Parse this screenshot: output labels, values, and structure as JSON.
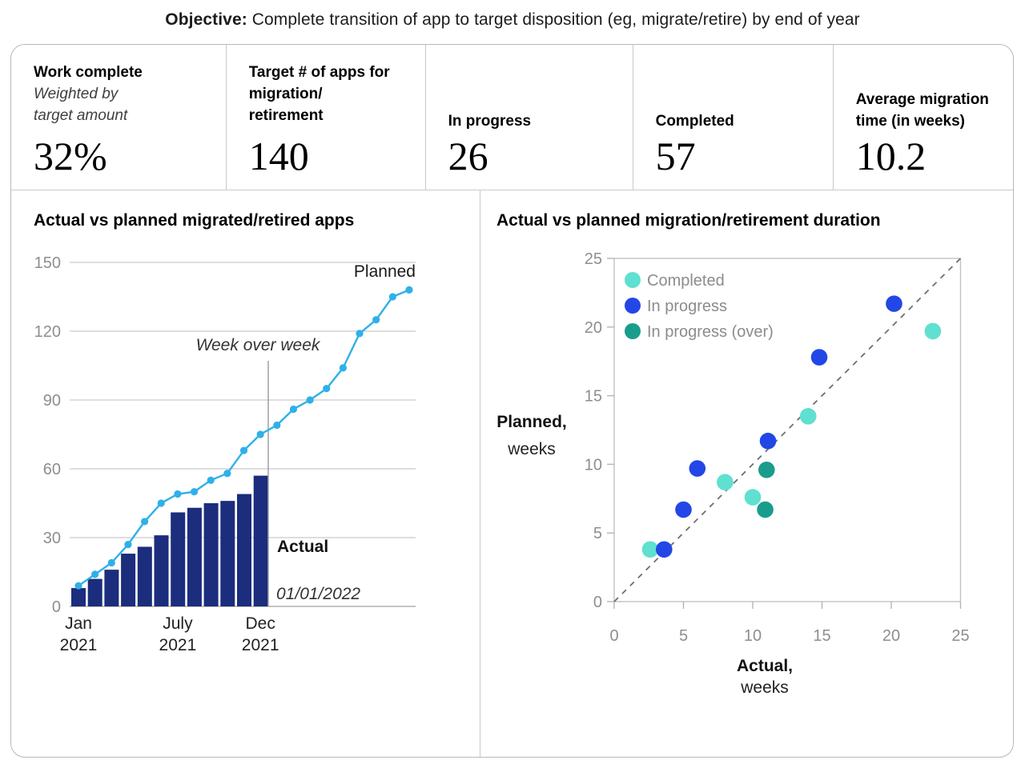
{
  "header": {
    "label": "Objective:",
    "text": " Complete transition of app to target disposition (eg, migrate/retire) by end of year"
  },
  "kpis": [
    {
      "label": "Work complete",
      "sublabel": "Weighted by\ntarget amount",
      "value": "32%"
    },
    {
      "label": "Target # of apps for\nmigration/\nretirement",
      "value": "140"
    },
    {
      "label": "In progress",
      "value": "26"
    },
    {
      "label": "Completed",
      "value": "57"
    },
    {
      "label": "Average migration\ntime (in weeks)",
      "value": "10.2"
    }
  ],
  "chart_data": [
    {
      "type": "bar+line",
      "title": "Actual vs planned migrated/retired apps",
      "ylim": [
        0,
        150
      ],
      "y_ticks": [
        0,
        30,
        60,
        90,
        120,
        150
      ],
      "grid": true,
      "bars": {
        "name": "Actual",
        "color": "#1b2d7c",
        "period": "monthly 2021",
        "values": [
          8,
          12,
          16,
          23,
          26,
          31,
          41,
          43,
          45,
          46,
          49,
          57
        ]
      },
      "line": {
        "name": "Planned",
        "color": "#2fb0e8",
        "values": [
          9,
          14,
          19,
          27,
          37,
          45,
          49,
          50,
          55,
          58,
          68,
          75,
          79,
          86,
          90,
          95,
          104,
          119,
          125,
          135,
          138
        ]
      },
      "x_tick_labels": [
        {
          "label": "Jan\n2021",
          "index": 0
        },
        {
          "label": "July\n2021",
          "index": 6
        },
        {
          "label": "Dec\n2021",
          "index": 11
        }
      ],
      "annotations": {
        "line_label": "Planned",
        "bars_label": "Actual",
        "week_over_week": "Week over week",
        "cutoff_date": "01/01/2022"
      }
    },
    {
      "type": "scatter",
      "title": "Actual vs planned migration/retirement duration",
      "xlabel_bold": "Actual,",
      "xlabel_sub": "weeks",
      "ylabel_bold": "Planned,",
      "ylabel_sub": "weeks",
      "xlim": [
        0,
        25
      ],
      "ylim": [
        0,
        25
      ],
      "x_ticks": [
        0,
        5,
        10,
        15,
        20,
        25
      ],
      "y_ticks": [
        0,
        5,
        10,
        15,
        20,
        25
      ],
      "diagonal": true,
      "legend_position": "top-left",
      "series": [
        {
          "name": "Completed",
          "color": "#5fe0d0",
          "points": [
            [
              2.6,
              3.8
            ],
            [
              8.0,
              8.7
            ],
            [
              10.0,
              7.6
            ],
            [
              14.0,
              13.5
            ],
            [
              23.0,
              19.7
            ]
          ]
        },
        {
          "name": "In progress",
          "color": "#2247e6",
          "points": [
            [
              3.6,
              3.8
            ],
            [
              5.0,
              6.7
            ],
            [
              6.0,
              9.7
            ],
            [
              11.1,
              11.7
            ],
            [
              14.8,
              17.8
            ],
            [
              20.2,
              21.7
            ]
          ]
        },
        {
          "name": "In progress (over)",
          "color": "#1a9c8c",
          "points": [
            [
              10.9,
              6.7
            ],
            [
              11.0,
              9.6
            ]
          ]
        }
      ]
    }
  ]
}
